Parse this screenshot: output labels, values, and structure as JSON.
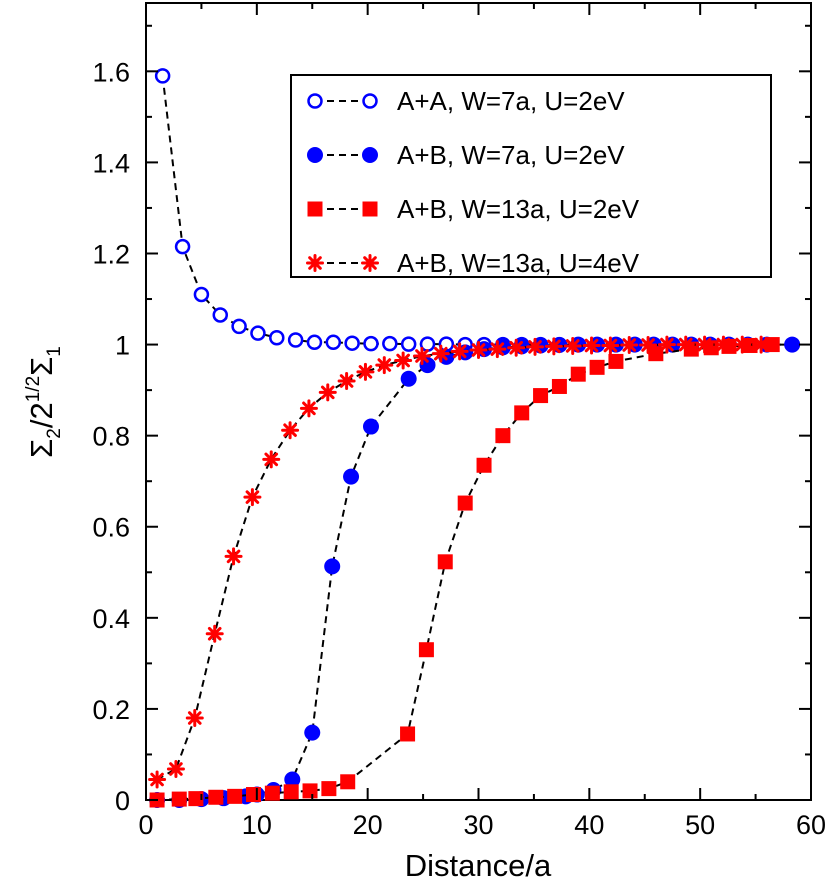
{
  "chart_data": {
    "type": "line",
    "title": "",
    "xlabel": "Distance/a",
    "ylabel": "Σ2/2^1/2Σ1",
    "ylabel_parts": {
      "sym1": "Σ",
      "sub1": "2",
      "slash": "/2",
      "sup": "1/2",
      "sym2": "Σ",
      "sub2": "1"
    },
    "xlim": [
      0,
      60
    ],
    "ylim": [
      0,
      1.75
    ],
    "xticks": [
      0,
      10,
      20,
      30,
      40,
      50,
      60
    ],
    "yticks": [
      0,
      0.2,
      0.4,
      0.6,
      0.8,
      1,
      1.2,
      1.4,
      1.6
    ],
    "xtick_labels": [
      "0",
      "10",
      "20",
      "30",
      "40",
      "50",
      "60"
    ],
    "ytick_labels": [
      "0",
      "0.2",
      "0.4",
      "0.6",
      "0.8",
      "1",
      "1.2",
      "1.4",
      "1.6"
    ],
    "grid": false,
    "legend_position": "top-right",
    "series": [
      {
        "name": "A+A, W=7a, U=2eV",
        "color": "#0000ff",
        "marker": "open-circle",
        "line": "dashed",
        "x": [
          1.5,
          3.3,
          5.0,
          6.7,
          8.4,
          10.1,
          11.8,
          13.5,
          15.2,
          16.9,
          18.6,
          20.3,
          22.0,
          23.7,
          25.4,
          27.1,
          28.8,
          30.5,
          32.2,
          33.9,
          35.6,
          37.3,
          39.0,
          40.7,
          42.4,
          44.1,
          45.8,
          47.5,
          49.2,
          50.9,
          52.6,
          54.3,
          56.0,
          58.3
        ],
        "y": [
          1.59,
          1.215,
          1.11,
          1.065,
          1.04,
          1.025,
          1.015,
          1.01,
          1.005,
          1.005,
          1.003,
          1.002,
          1.002,
          1.001,
          1.001,
          1.001,
          1.0,
          1.0,
          1.0,
          1.0,
          1.0,
          1.0,
          1.0,
          1.0,
          1.0,
          1.0,
          1.0,
          1.0,
          1.0,
          1.0,
          1.0,
          1.0,
          1.0,
          1.0
        ]
      },
      {
        "name": "A+B, W=7a, U=2eV",
        "color": "#0000ff",
        "marker": "filled-circle",
        "line": "dashed",
        "x": [
          1.0,
          3.0,
          5.0,
          7.0,
          9.0,
          10.0,
          11.5,
          13.2,
          15.0,
          16.8,
          18.5,
          20.3,
          23.7,
          25.4,
          27.1,
          28.8,
          30.5,
          32.2,
          33.9,
          35.6,
          37.3,
          39.0,
          40.7,
          42.4,
          44.1,
          45.8,
          47.5,
          49.2,
          50.9,
          52.6,
          54.3,
          56.0,
          58.3
        ],
        "y": [
          0.0,
          0.0,
          0.002,
          0.004,
          0.008,
          0.012,
          0.022,
          0.045,
          0.148,
          0.513,
          0.71,
          0.82,
          0.925,
          0.955,
          0.973,
          0.983,
          0.99,
          0.994,
          0.996,
          0.998,
          0.999,
          1.0,
          1.0,
          1.0,
          1.0,
          1.0,
          1.0,
          1.0,
          1.0,
          1.0,
          1.0,
          1.0,
          1.0
        ]
      },
      {
        "name": "A+B, W=13a, U=2eV",
        "color": "#ff0000",
        "marker": "filled-square",
        "line": "dashed",
        "x": [
          1.0,
          3.0,
          4.5,
          6.3,
          8.0,
          9.7,
          11.4,
          13.1,
          14.8,
          16.5,
          18.2,
          23.6,
          25.3,
          27.0,
          28.8,
          30.5,
          32.2,
          33.9,
          35.6,
          37.3,
          39.0,
          40.7,
          42.4,
          46.0,
          49.2,
          51.0,
          52.6,
          54.5,
          56.5
        ],
        "y": [
          0.0,
          0.002,
          0.003,
          0.006,
          0.008,
          0.012,
          0.015,
          0.018,
          0.02,
          0.025,
          0.04,
          0.145,
          0.33,
          0.523,
          0.652,
          0.735,
          0.8,
          0.85,
          0.888,
          0.908,
          0.935,
          0.95,
          0.963,
          0.98,
          0.99,
          0.993,
          0.996,
          0.998,
          1.0
        ]
      },
      {
        "name": "A+B, W=13a, U=4eV",
        "color": "#ff0000",
        "marker": "star",
        "line": "dashed",
        "x": [
          1.0,
          2.7,
          4.4,
          6.2,
          7.9,
          9.6,
          11.3,
          13.0,
          14.7,
          16.4,
          18.1,
          19.8,
          21.5,
          23.2,
          24.9,
          26.6,
          28.3,
          30.0,
          31.7,
          33.4,
          35.1,
          36.8,
          38.5,
          40.2,
          41.9,
          43.6,
          45.3,
          47.0,
          48.7,
          50.4,
          52.1,
          53.8,
          55.5
        ],
        "y": [
          0.045,
          0.068,
          0.18,
          0.365,
          0.535,
          0.665,
          0.748,
          0.812,
          0.86,
          0.895,
          0.92,
          0.94,
          0.955,
          0.965,
          0.975,
          0.98,
          0.985,
          0.988,
          0.99,
          0.993,
          0.995,
          0.996,
          0.997,
          0.998,
          0.998,
          0.999,
          0.999,
          1.0,
          1.0,
          1.0,
          1.0,
          1.0,
          1.0
        ]
      }
    ]
  }
}
